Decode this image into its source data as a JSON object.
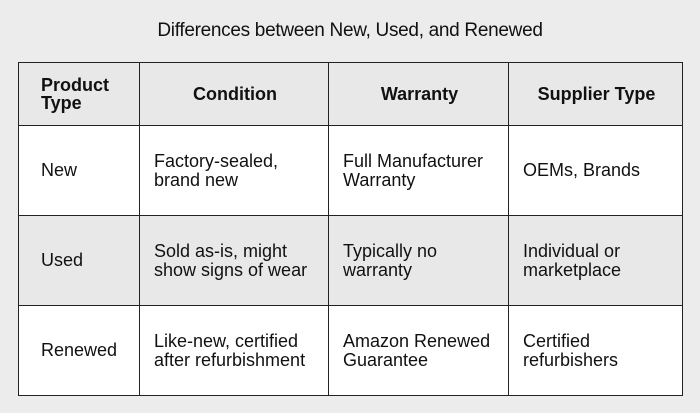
{
  "title": "Differences between New, Used, and Renewed",
  "headers": [
    "Product Type",
    "Condition",
    "Warranty",
    "Supplier Type"
  ],
  "rows": [
    {
      "product": "New",
      "condition": "Factory-sealed, brand new",
      "warranty": "Full Manufacturer Warranty",
      "supplier": "OEMs, Brands"
    },
    {
      "product": "Used",
      "condition": "Sold as-is, might show signs of wear",
      "warranty": "Typically no warranty",
      "supplier": "Individual or marketplace"
    },
    {
      "product": "Renewed",
      "condition": "Like-new, certified after refurbishment",
      "warranty": "Amazon Renewed Guarantee",
      "supplier": "Certified refurbishers"
    }
  ],
  "colors": {
    "background": "#ececec",
    "row_white": "#ffffff",
    "row_grey": "#e8e8e8",
    "border": "#222222"
  }
}
